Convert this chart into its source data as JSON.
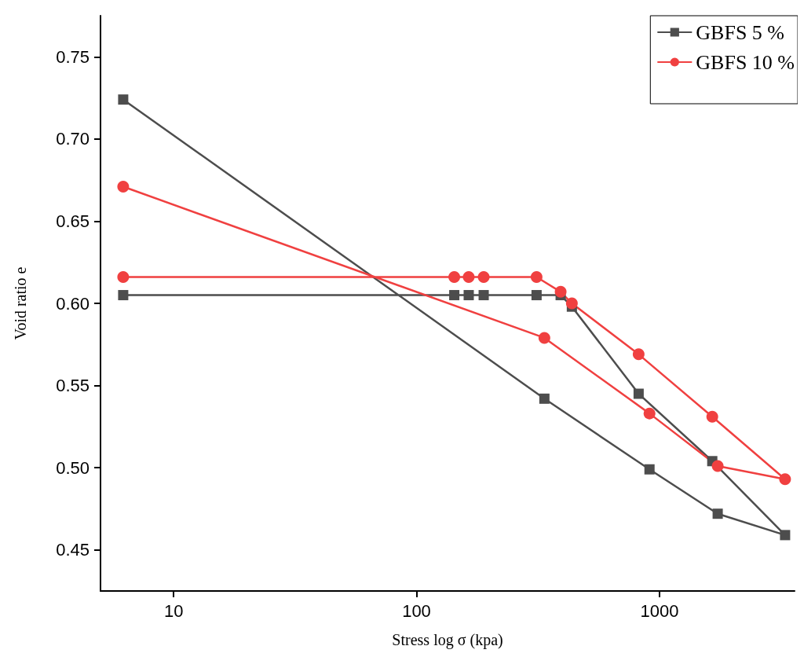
{
  "chart_data": {
    "type": "line",
    "xlabel": "Stress log σ (kpa)",
    "ylabel": "Void ratio e",
    "log": "x",
    "xlim": [
      5,
      3600
    ],
    "xticks": [
      10,
      100,
      1000
    ],
    "ylim": [
      0.425,
      0.775
    ],
    "yticks": [
      0.45,
      {
        "value": 0.5,
        "label": "0.50"
      },
      0.55,
      {
        "value": 0.6,
        "label": "0.60"
      },
      0.65,
      {
        "value": 0.7,
        "label": "0.70"
      },
      0.75
    ],
    "grid": false,
    "legend": "top right",
    "series": [
      {
        "name": "GBFS 5 %",
        "color": "#4d4d4d",
        "marker": "square",
        "x": [
          6.2,
          143,
          164,
          189,
          312,
          392,
          436,
          821,
          1650,
          3290,
          1737,
          910,
          336,
          6.2
        ],
        "values": [
          0.605,
          0.605,
          0.605,
          0.605,
          0.605,
          0.605,
          0.598,
          0.545,
          0.504,
          0.459,
          0.472,
          0.499,
          0.542,
          0.724
        ]
      },
      {
        "name": "GBFS 10 %",
        "color": "#f04040",
        "marker": "circle",
        "x": [
          6.2,
          143,
          164,
          189,
          312,
          392,
          436,
          821,
          1650,
          3290,
          1737,
          910,
          336,
          6.2
        ],
        "values": [
          0.616,
          0.616,
          0.616,
          0.616,
          0.616,
          0.607,
          0.6,
          0.569,
          0.531,
          0.493,
          0.501,
          0.533,
          0.579,
          0.671
        ]
      }
    ]
  }
}
